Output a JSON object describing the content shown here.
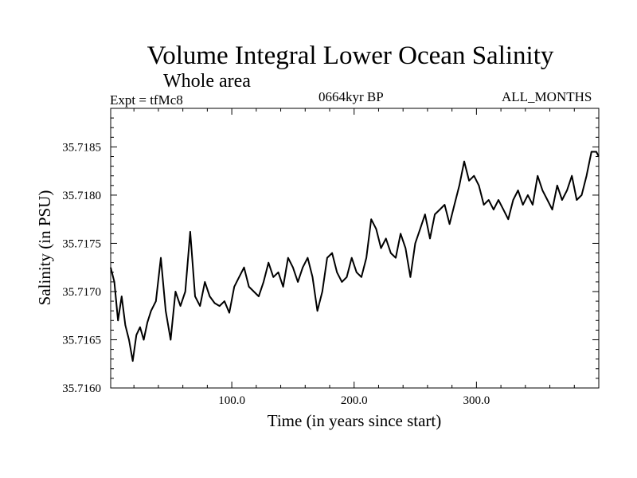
{
  "chart_data": {
    "type": "line",
    "title": "Volume Integral Lower Ocean Salinity",
    "subtitle": "Whole area",
    "annotations": {
      "left": "Expt = tfMc8",
      "center": "0664kyr BP",
      "right": "ALL_MONTHS"
    },
    "xlabel": "Time (in years since start)",
    "ylabel": "Salinity (in PSU)",
    "xlim": [
      1,
      400
    ],
    "ylim": [
      35.716,
      35.7189
    ],
    "x_ticks": [
      100,
      200,
      300
    ],
    "x_tick_labels": [
      "100.0",
      "200.0",
      "300.0"
    ],
    "y_ticks": [
      35.716,
      35.7165,
      35.717,
      35.7175,
      35.718,
      35.7185
    ],
    "y_tick_labels": [
      "35.7160",
      "35.7165",
      "35.7170",
      "35.7175",
      "35.7180",
      "35.7185"
    ],
    "grid": false,
    "series": [
      {
        "color": "#000000",
        "x": [
          1,
          4,
          7,
          10,
          13,
          16,
          19,
          22,
          25,
          28,
          31,
          34,
          38,
          42,
          46,
          50,
          54,
          58,
          62,
          66,
          70,
          74,
          78,
          82,
          86,
          90,
          94,
          98,
          102,
          106,
          110,
          114,
          118,
          122,
          126,
          130,
          134,
          138,
          142,
          146,
          150,
          154,
          158,
          162,
          166,
          170,
          174,
          178,
          182,
          186,
          190,
          194,
          198,
          202,
          206,
          210,
          214,
          218,
          222,
          226,
          230,
          234,
          238,
          242,
          246,
          250,
          254,
          258,
          262,
          266,
          270,
          274,
          278,
          282,
          286,
          290,
          294,
          298,
          302,
          306,
          310,
          314,
          318,
          322,
          326,
          330,
          334,
          338,
          342,
          346,
          350,
          354,
          358,
          362,
          366,
          370,
          374,
          378,
          382,
          386,
          390,
          394,
          398,
          400
        ],
        "y": [
          35.71725,
          35.7171,
          35.7167,
          35.71695,
          35.71665,
          35.7165,
          35.71628,
          35.71655,
          35.71663,
          35.7165,
          35.71668,
          35.7168,
          35.7169,
          35.71735,
          35.7168,
          35.7165,
          35.717,
          35.71685,
          35.717,
          35.71762,
          35.71695,
          35.71685,
          35.7171,
          35.71695,
          35.71688,
          35.71685,
          35.7169,
          35.71678,
          35.71705,
          35.71715,
          35.71725,
          35.71705,
          35.717,
          35.71695,
          35.7171,
          35.7173,
          35.71715,
          35.7172,
          35.71705,
          35.71735,
          35.71725,
          35.7171,
          35.71725,
          35.71735,
          35.71715,
          35.7168,
          35.717,
          35.71735,
          35.7174,
          35.7172,
          35.7171,
          35.71715,
          35.71735,
          35.7172,
          35.71715,
          35.71735,
          35.71775,
          35.71765,
          35.71745,
          35.71755,
          35.7174,
          35.71735,
          35.7176,
          35.71745,
          35.71715,
          35.7175,
          35.71765,
          35.7178,
          35.71755,
          35.7178,
          35.71785,
          35.7179,
          35.7177,
          35.7179,
          35.7181,
          35.71835,
          35.71815,
          35.7182,
          35.7181,
          35.7179,
          35.71795,
          35.71785,
          35.71795,
          35.71785,
          35.71775,
          35.71795,
          35.71805,
          35.7179,
          35.718,
          35.7179,
          35.7182,
          35.71805,
          35.71795,
          35.71785,
          35.7181,
          35.71795,
          35.71805,
          35.7182,
          35.71795,
          35.718,
          35.7182,
          35.71845,
          35.71845,
          35.7184
        ]
      }
    ]
  }
}
